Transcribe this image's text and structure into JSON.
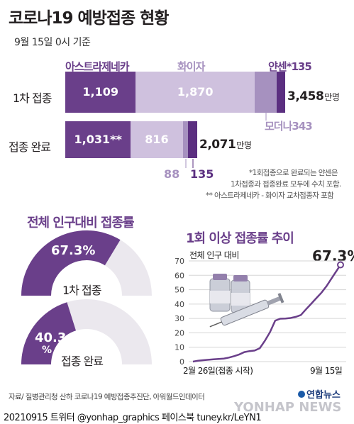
{
  "title": "코로나19 예방접종 현황",
  "subtitle": "9월 15일 0시 기준",
  "vaccines": {
    "astrazeneca": "아스트라제네카",
    "pfizer": "화이자",
    "janssen": "얀센*",
    "janssen_value": "135",
    "moderna": "모더나",
    "moderna_value": "343"
  },
  "colors": {
    "astrazeneca": "#6a3f8a",
    "pfizer": "#cfc1de",
    "moderna": "#a691bf",
    "janssen": "#5b2f80",
    "accent": "#6a3f8a",
    "gauge_bg": "#ebe8ee",
    "line": "#6a3f8a"
  },
  "rows": [
    {
      "label": "1차 접종",
      "segments": [
        {
          "name": "아스트라제네카",
          "value": 1109,
          "label": "1,109"
        },
        {
          "name": "화이자",
          "value": 1870,
          "label": "1,870"
        },
        {
          "name": "모더나",
          "value": 343,
          "label": ""
        },
        {
          "name": "얀센",
          "value": 135,
          "label": ""
        }
      ],
      "total": "3,458",
      "unit": "만명"
    },
    {
      "label": "접종 완료",
      "segments": [
        {
          "name": "아스트라제네카",
          "value": 1031,
          "label": "1,031**"
        },
        {
          "name": "화이자",
          "value": 816,
          "label": "816"
        },
        {
          "name": "모더나",
          "value": 88,
          "label": ""
        },
        {
          "name": "얀센",
          "value": 135,
          "label": ""
        }
      ],
      "total": "2,071",
      "unit": "만명",
      "below_labels": {
        "moderna": "88",
        "janssen": "135"
      }
    }
  ],
  "notes": [
    "*1회접종으로 완료되는 얀센은",
    "1차접종과 접종완료 모두에 수치 포함.",
    "** 아스트라제네카 - 화이자 교차접종자 포함"
  ],
  "gauges": {
    "title": "전체 인구대비 접종률",
    "items": [
      {
        "label": "1차 접종",
        "value": 67.3,
        "text": "67.3%"
      },
      {
        "label": "접종 완료",
        "value": 40.3,
        "text": "40.3",
        "text2": "%"
      }
    ]
  },
  "chart_data": {
    "type": "line",
    "title": "1회 이상 접종률 추이",
    "ylabel": "전체 인구 대비",
    "ylim": [
      0,
      70
    ],
    "yticks": [
      0,
      10,
      20,
      30,
      40,
      50,
      60,
      70
    ],
    "x_start_label": "2월 26일(접종 시작)",
    "x_end_label": "9월 15일",
    "end_value_label": "67.3%",
    "series": [
      {
        "x": [
          "2021-02-26",
          "2021-03-05",
          "2021-03-12",
          "2021-03-19",
          "2021-03-26",
          "2021-04-02",
          "2021-04-09",
          "2021-04-16",
          "2021-04-23",
          "2021-04-30",
          "2021-05-07",
          "2021-05-14",
          "2021-05-21",
          "2021-05-28",
          "2021-06-04",
          "2021-06-11",
          "2021-06-18",
          "2021-06-25",
          "2021-07-02",
          "2021-07-09",
          "2021-07-16",
          "2021-07-23",
          "2021-07-30",
          "2021-08-06",
          "2021-08-13",
          "2021-08-20",
          "2021-08-27",
          "2021-09-03",
          "2021-09-10",
          "2021-09-15"
        ],
        "values": [
          0,
          0.6,
          1.0,
          1.3,
          1.6,
          1.8,
          2.1,
          2.8,
          3.8,
          5.0,
          6.6,
          7.3,
          7.7,
          9.3,
          14.5,
          20.6,
          28.5,
          29.8,
          29.9,
          30.3,
          31.1,
          32.4,
          36.4,
          40.2,
          44.1,
          47.9,
          52.5,
          58.0,
          63.4,
          67.3
        ]
      }
    ]
  },
  "source": "자료/ 질병관리청 산하 코로나19 예방접종추진단, 아워월드인데이터",
  "footer": "20210915  트위터 @yonhap_graphics  페이스북 tuney.kr/LeYN1",
  "logo": {
    "brand": "연합뉴스",
    "watermark": "YONHAP NEWS"
  }
}
